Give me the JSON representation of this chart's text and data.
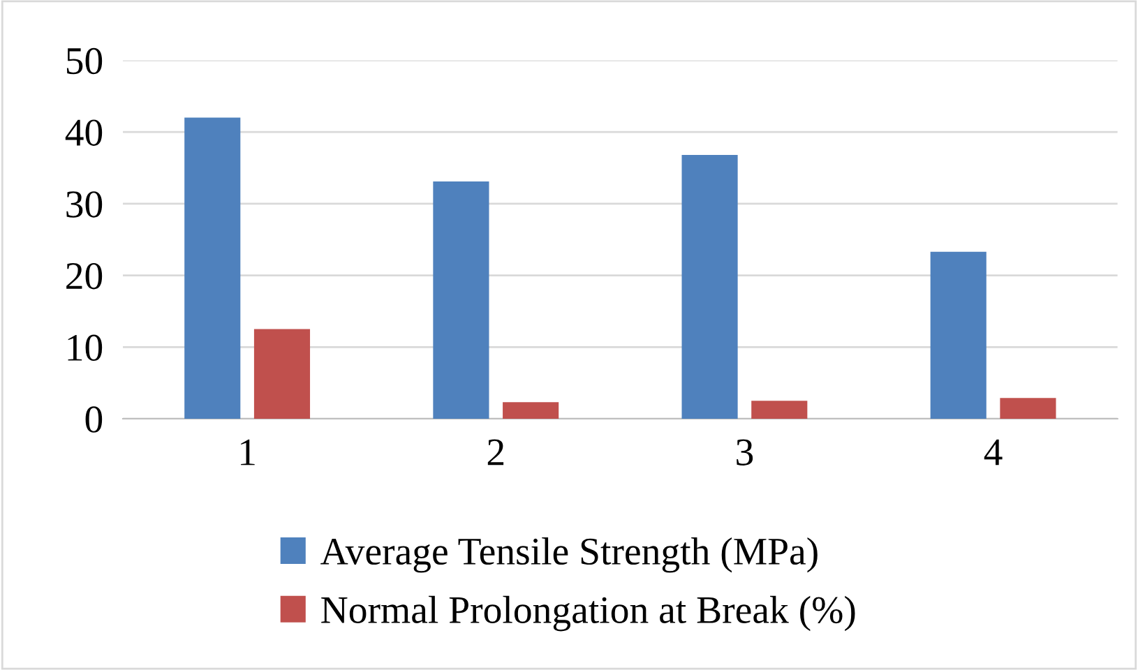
{
  "chart_data": {
    "type": "bar",
    "categories": [
      "1",
      "2",
      "3",
      "4"
    ],
    "series": [
      {
        "name": "Average Tensile Strength (MPa)",
        "color": "#4f81bd",
        "values": [
          42.0,
          33.1,
          36.8,
          23.3
        ]
      },
      {
        "name": "Normal Prolongation at Break (%)",
        "color": "#c0504d",
        "values": [
          12.5,
          2.3,
          2.5,
          2.9
        ]
      }
    ],
    "ylim": [
      0,
      50
    ],
    "yticks": [
      0,
      10,
      20,
      30,
      40,
      50
    ],
    "grid": "y",
    "legend": "bottom"
  }
}
